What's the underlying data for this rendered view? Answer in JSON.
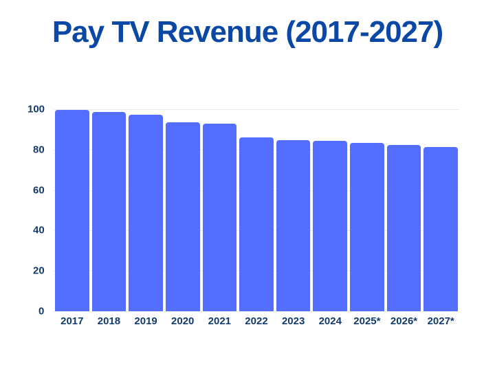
{
  "chart_data": {
    "type": "bar",
    "title": "Pay TV Revenue (2017-2027)",
    "xlabel": "",
    "ylabel": "",
    "categories": [
      "2017",
      "2018",
      "2019",
      "2020",
      "2021",
      "2022",
      "2023",
      "2024",
      "2025*",
      "2026*",
      "2027*"
    ],
    "values": [
      99.8,
      98.6,
      97.3,
      93.5,
      92.9,
      86.0,
      84.8,
      84.3,
      83.3,
      82.3,
      81.3
    ],
    "yticks": [
      "0",
      "20",
      "40",
      "60",
      "80",
      "100"
    ],
    "ylim": [
      0,
      100
    ],
    "grid": true,
    "legend": null,
    "bar_color": "#536dfe",
    "title_color": "#0b48a6",
    "label_color": "#123a6b"
  }
}
